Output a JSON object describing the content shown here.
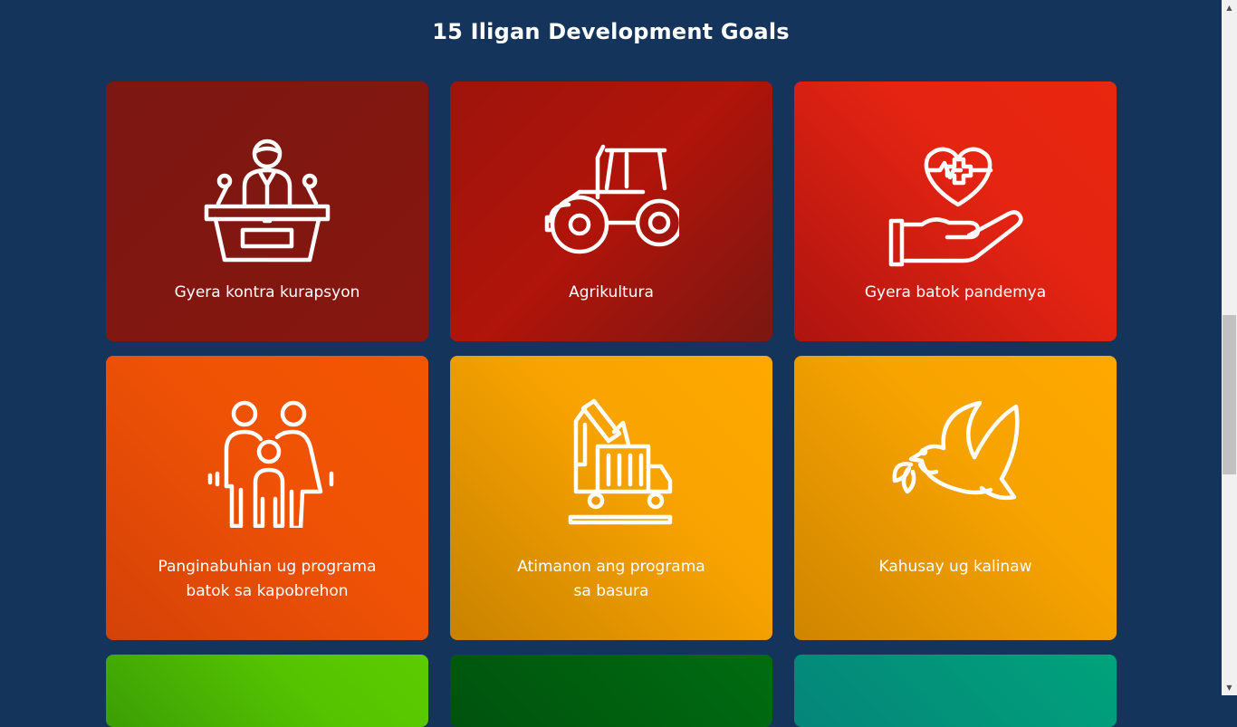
{
  "page": {
    "title": "15 Iligan Development Goals"
  },
  "cards": [
    {
      "lines": [
        "Gyera kontra kurapsyon"
      ],
      "icon": "podium-speaker-icon",
      "color": "#801710"
    },
    {
      "lines": [
        "Agrikultura"
      ],
      "icon": "tractor-icon",
      "color": "#a6140c"
    },
    {
      "lines": [
        "Gyera batok pandemya"
      ],
      "icon": "heart-hand-icon",
      "color": "#e02512"
    },
    {
      "lines": [
        "Panginabuhian ug programa",
        "batok sa kapobrehon"
      ],
      "icon": "family-icon",
      "color": "#ef5205"
    },
    {
      "lines": [
        "Atimanon ang programa",
        "sa basura"
      ],
      "icon": "garbage-truck-icon",
      "color": "#f8a300"
    },
    {
      "lines": [
        "Kahusay ug kalinaw"
      ],
      "icon": "peace-dove-icon",
      "color": "#f7a300"
    },
    {
      "lines": [],
      "icon": "",
      "color": "#55c400"
    },
    {
      "lines": [],
      "icon": "",
      "color": "#006d10"
    },
    {
      "lines": [],
      "icon": "",
      "color": "#00a37b"
    }
  ],
  "scrollbar": {
    "up_arrow": "▲",
    "down_arrow": "▼"
  }
}
